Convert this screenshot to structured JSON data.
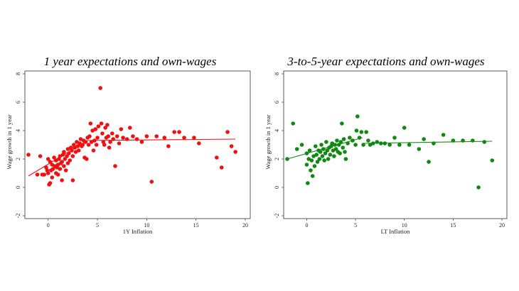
{
  "chart_data": [
    {
      "type": "scatter",
      "title": "1 year expectations and own-wages",
      "xlabel": "1Y Inflation",
      "ylabel": "Wage growth in 1 year",
      "xlim": [
        -2,
        20
      ],
      "ylim": [
        -2,
        8
      ],
      "xticks": [
        "0",
        "5",
        "10",
        "15",
        "20"
      ],
      "yticks": [
        "-2",
        "0",
        "2",
        "4",
        "6",
        "8"
      ],
      "color": "#ee1111",
      "fit": [
        {
          "x0": -2,
          "y0": 0.8,
          "x1": 4,
          "y1": 3.3
        },
        {
          "x0": 4,
          "y0": 3.3,
          "x1": 19,
          "y1": 3.4
        }
      ],
      "points": [
        [
          -2,
          2.3
        ],
        [
          -1.1,
          0.9
        ],
        [
          -0.8,
          2.2
        ],
        [
          -0.6,
          0.9
        ],
        [
          -0.4,
          0.9
        ],
        [
          -0.2,
          1.4
        ],
        [
          -0.1,
          1.2
        ],
        [
          0,
          1.0
        ],
        [
          0.1,
          0.2
        ],
        [
          0.2,
          0.3
        ],
        [
          0,
          2.0
        ],
        [
          0.2,
          1.8
        ],
        [
          0.3,
          1.2
        ],
        [
          0.4,
          1.6
        ],
        [
          0.4,
          0.7
        ],
        [
          0.5,
          1.3
        ],
        [
          0.6,
          2.1
        ],
        [
          0.7,
          1.5
        ],
        [
          0.8,
          1.0
        ],
        [
          0.8,
          1.9
        ],
        [
          0.9,
          1.4
        ],
        [
          1.0,
          1.6
        ],
        [
          1.0,
          0.9
        ],
        [
          1.1,
          2.0
        ],
        [
          1.2,
          1.3
        ],
        [
          1.2,
          2.2
        ],
        [
          1.3,
          1.7
        ],
        [
          1.4,
          0.5
        ],
        [
          1.4,
          1.8
        ],
        [
          1.5,
          2.3
        ],
        [
          1.6,
          1.5
        ],
        [
          1.6,
          2.5
        ],
        [
          1.7,
          2.0
        ],
        [
          1.8,
          1.2
        ],
        [
          1.9,
          2.2
        ],
        [
          2.0,
          1.7
        ],
        [
          2.0,
          2.7
        ],
        [
          2.1,
          2.4
        ],
        [
          2.2,
          1.9
        ],
        [
          2.3,
          2.8
        ],
        [
          2.4,
          2.6
        ],
        [
          2.5,
          2.2
        ],
        [
          2.5,
          0.5
        ],
        [
          2.6,
          3.0
        ],
        [
          2.7,
          2.8
        ],
        [
          2.8,
          2.5
        ],
        [
          2.9,
          3.2
        ],
        [
          3.0,
          2.9
        ],
        [
          3.1,
          2.6
        ],
        [
          3.2,
          3.1
        ],
        [
          3.3,
          3.4
        ],
        [
          3.4,
          2.9
        ],
        [
          3.5,
          3.0
        ],
        [
          3.6,
          3.3
        ],
        [
          3.7,
          2.1
        ],
        [
          3.8,
          3.2
        ],
        [
          3.9,
          2.0
        ],
        [
          4.0,
          3.5
        ],
        [
          4.1,
          3.0
        ],
        [
          4.2,
          3.6
        ],
        [
          4.3,
          4.5
        ],
        [
          4.4,
          3.2
        ],
        [
          4.5,
          4.0
        ],
        [
          4.6,
          2.6
        ],
        [
          4.7,
          3.3
        ],
        [
          4.8,
          4.1
        ],
        [
          4.9,
          3.0
        ],
        [
          5.0,
          3.5
        ],
        [
          5.1,
          4.3
        ],
        [
          5.3,
          7.0
        ],
        [
          5.4,
          4.5
        ],
        [
          5.5,
          3.8
        ],
        [
          5.6,
          3.2
        ],
        [
          5.7,
          3.0
        ],
        [
          5.8,
          4.2
        ],
        [
          5.9,
          3.5
        ],
        [
          6.0,
          4.4
        ],
        [
          6.1,
          3.6
        ],
        [
          6.2,
          2.8
        ],
        [
          6.3,
          3.2
        ],
        [
          6.5,
          3.8
        ],
        [
          6.6,
          3.4
        ],
        [
          6.8,
          1.5
        ],
        [
          7.0,
          3.6
        ],
        [
          7.2,
          3.1
        ],
        [
          7.4,
          4.1
        ],
        [
          7.6,
          3.5
        ],
        [
          8.0,
          3.4
        ],
        [
          8.3,
          4.2
        ],
        [
          8.6,
          3.6
        ],
        [
          9.0,
          3.4
        ],
        [
          9.5,
          3.2
        ],
        [
          10.0,
          3.6
        ],
        [
          10.5,
          0.4
        ],
        [
          11.0,
          3.6
        ],
        [
          11.8,
          3.5
        ],
        [
          12.2,
          2.9
        ],
        [
          12.8,
          3.9
        ],
        [
          13.3,
          3.9
        ],
        [
          13.8,
          3.5
        ],
        [
          14.8,
          3.5
        ],
        [
          15.3,
          3.1
        ],
        [
          17.1,
          2.1
        ],
        [
          17.6,
          1.4
        ],
        [
          18.2,
          3.9
        ],
        [
          18.6,
          2.9
        ],
        [
          19.0,
          2.5
        ]
      ]
    },
    {
      "type": "scatter",
      "title": "3-to-5-year expectations and own-wages",
      "xlabel": "LT Inflation",
      "ylabel": "Wage growth in 1 year",
      "xlim": [
        -2,
        20
      ],
      "ylim": [
        -2,
        8
      ],
      "xticks": [
        "0",
        "5",
        "10",
        "15",
        "20"
      ],
      "yticks": [
        "-2",
        "0",
        "2",
        "4",
        "6",
        "8"
      ],
      "color": "#118811",
      "fit": [
        {
          "x0": -2,
          "y0": 2.0,
          "x1": 5.7,
          "y1": 3.5
        },
        {
          "x0": 5.7,
          "y0": 3.1,
          "x1": 19,
          "y1": 3.25
        }
      ],
      "points": [
        [
          -2,
          2.0
        ],
        [
          -1.4,
          4.5
        ],
        [
          -1.0,
          2.7
        ],
        [
          -0.5,
          3.0
        ],
        [
          0,
          1.6
        ],
        [
          0,
          2.4
        ],
        [
          0.1,
          0.3
        ],
        [
          0.2,
          2.0
        ],
        [
          0.3,
          2.6
        ],
        [
          0.4,
          1.2
        ],
        [
          0.5,
          1.9
        ],
        [
          0.6,
          0.8
        ],
        [
          0.7,
          2.2
        ],
        [
          0.8,
          1.5
        ],
        [
          0.9,
          2.9
        ],
        [
          1.0,
          2.3
        ],
        [
          1.1,
          1.8
        ],
        [
          1.2,
          2.6
        ],
        [
          1.3,
          2.0
        ],
        [
          1.4,
          2.5
        ],
        [
          1.5,
          3.0
        ],
        [
          1.6,
          2.2
        ],
        [
          1.7,
          2.7
        ],
        [
          1.8,
          1.9
        ],
        [
          1.9,
          2.4
        ],
        [
          2.0,
          3.2
        ],
        [
          2.1,
          2.6
        ],
        [
          2.2,
          2.0
        ],
        [
          2.3,
          2.8
        ],
        [
          2.4,
          2.3
        ],
        [
          2.5,
          2.9
        ],
        [
          2.6,
          3.1
        ],
        [
          2.7,
          2.6
        ],
        [
          2.8,
          2.2
        ],
        [
          2.9,
          3.0
        ],
        [
          3.0,
          2.7
        ],
        [
          3.1,
          3.3
        ],
        [
          3.2,
          2.5
        ],
        [
          3.3,
          3.0
        ],
        [
          3.4,
          2.4
        ],
        [
          3.5,
          3.2
        ],
        [
          3.6,
          4.5
        ],
        [
          3.7,
          2.8
        ],
        [
          3.8,
          3.4
        ],
        [
          3.9,
          2.5
        ],
        [
          4.0,
          2.0
        ],
        [
          4.2,
          3.1
        ],
        [
          4.4,
          3.5
        ],
        [
          4.7,
          3.3
        ],
        [
          5.0,
          3.0
        ],
        [
          5.1,
          4.0
        ],
        [
          5.2,
          5.0
        ],
        [
          5.4,
          3.5
        ],
        [
          5.6,
          3.9
        ],
        [
          5.8,
          3.0
        ],
        [
          6.1,
          3.9
        ],
        [
          6.3,
          3.3
        ],
        [
          6.5,
          3.0
        ],
        [
          6.8,
          3.1
        ],
        [
          7.2,
          3.2
        ],
        [
          7.6,
          3.1
        ],
        [
          8.0,
          3.1
        ],
        [
          8.5,
          3.0
        ],
        [
          9.0,
          3.5
        ],
        [
          9.5,
          3.0
        ],
        [
          10.0,
          4.2
        ],
        [
          10.5,
          3.0
        ],
        [
          11.5,
          2.7
        ],
        [
          12.0,
          3.4
        ],
        [
          12.5,
          1.8
        ],
        [
          13.0,
          3.1
        ],
        [
          14.0,
          3.7
        ],
        [
          15.0,
          3.3
        ],
        [
          16.0,
          3.3
        ],
        [
          17.0,
          3.3
        ],
        [
          17.6,
          0.0
        ],
        [
          18.2,
          3.2
        ],
        [
          19.0,
          1.9
        ]
      ]
    }
  ]
}
